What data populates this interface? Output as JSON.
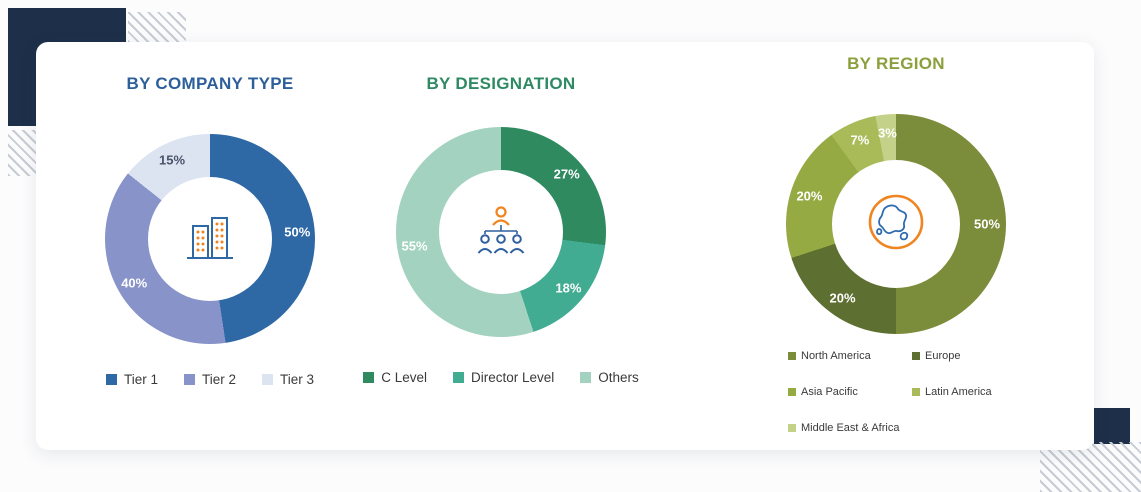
{
  "chart_data": [
    {
      "type": "donut",
      "title": "BY COMPANY TYPE",
      "title_color": "#2d5f9b",
      "center_icon": "buildings-icon",
      "legend_position": "bottom",
      "categories": [
        "Tier 1",
        "Tier 2",
        "Tier 3"
      ],
      "values": [
        50,
        40,
        15
      ],
      "labels": [
        "50%",
        "40%",
        "15%"
      ],
      "colors": [
        "#2e68a5",
        "#8793c9",
        "#dce4f2"
      ],
      "label_colors": [
        "#ffffff",
        "#ffffff",
        "#4a5468"
      ]
    },
    {
      "type": "donut",
      "title": "BY DESIGNATION",
      "title_color": "#2e8a62",
      "center_icon": "designation-icon",
      "legend_position": "bottom",
      "categories": [
        "C Level",
        "Director Level",
        "Others"
      ],
      "values": [
        27,
        18,
        55
      ],
      "labels": [
        "27%",
        "18%",
        "55%"
      ],
      "colors": [
        "#2f8a60",
        "#41ac91",
        "#a3d3c0"
      ],
      "label_colors": [
        "#ffffff",
        "#ffffff",
        "#ffffff"
      ]
    },
    {
      "type": "donut",
      "title": "BY REGION",
      "title_color": "#8ba03d",
      "center_icon": "globe-icon",
      "legend_position": "bottom",
      "categories": [
        "North America",
        "Europe",
        "Asia Pacific",
        "Latin America",
        "Middle East & Africa"
      ],
      "values": [
        50,
        20,
        20,
        7,
        3
      ],
      "labels": [
        "50%",
        "20%",
        "20%",
        "7%",
        "3%"
      ],
      "colors": [
        "#7b8c3a",
        "#5e7031",
        "#95aa42",
        "#a9bb58",
        "#c4d189"
      ],
      "label_colors": [
        "#ffffff",
        "#ffffff",
        "#ffffff",
        "#ffffff",
        "#ffffff"
      ]
    }
  ]
}
